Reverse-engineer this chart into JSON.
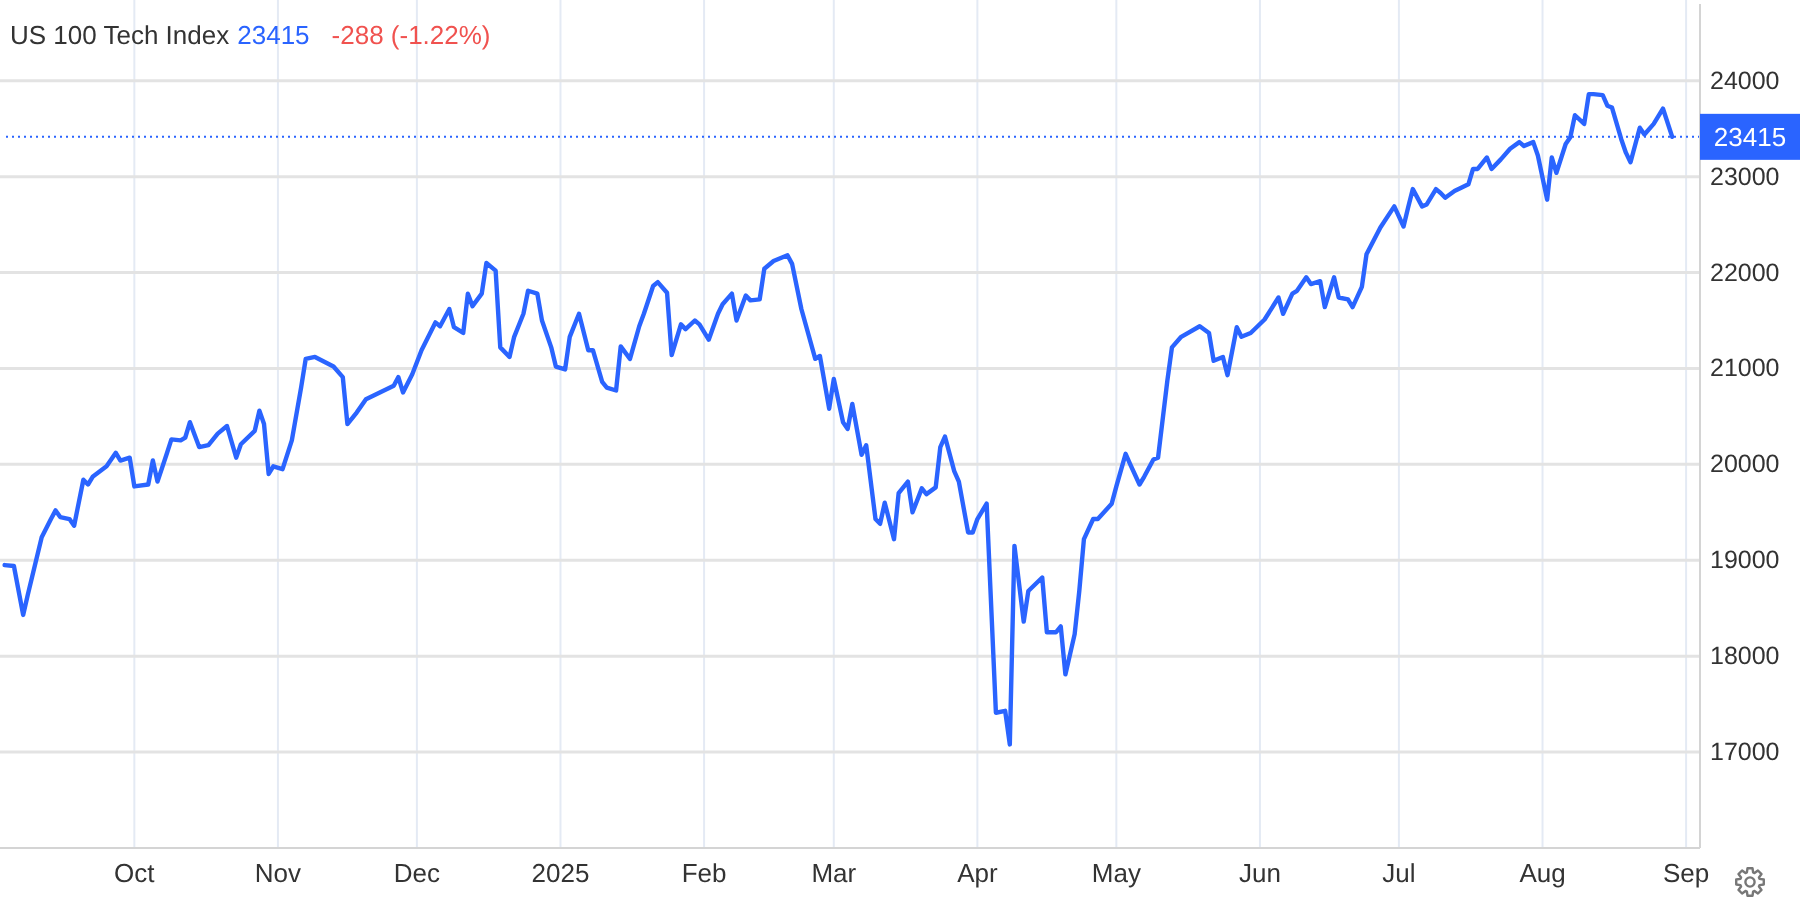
{
  "chart_data": {
    "type": "line",
    "title": "US 100 Tech Index",
    "annotations": [
      "23415",
      "-288 (-1.22%)"
    ],
    "x": [
      "2024-09-03",
      "2024-09-05",
      "2024-09-07",
      "2024-09-08",
      "2024-09-11",
      "2024-09-13",
      "2024-09-14",
      "2024-09-15",
      "2024-09-17",
      "2024-09-18",
      "2024-09-20",
      "2024-09-21",
      "2024-09-22",
      "2024-09-25",
      "2024-09-27",
      "2024-09-28",
      "2024-09-30",
      "2024-10-01",
      "2024-10-04",
      "2024-10-05",
      "2024-10-06",
      "2024-10-08",
      "2024-10-09",
      "2024-10-11",
      "2024-10-12",
      "2024-10-13",
      "2024-10-15",
      "2024-10-17",
      "2024-10-19",
      "2024-10-21",
      "2024-10-23",
      "2024-10-24",
      "2024-10-27",
      "2024-10-28",
      "2024-10-29",
      "2024-10-30",
      "2024-10-31",
      "2024-11-02",
      "2024-11-04",
      "2024-11-06",
      "2024-11-07",
      "2024-11-09",
      "2024-11-13",
      "2024-11-15",
      "2024-11-16",
      "2024-11-18",
      "2024-11-20",
      "2024-11-23",
      "2024-11-26",
      "2024-11-27",
      "2024-11-28",
      "2024-11-30",
      "2024-12-02",
      "2024-12-05",
      "2024-12-06",
      "2024-12-08",
      "2024-12-09",
      "2024-12-11",
      "2024-12-12",
      "2024-12-13",
      "2024-12-15",
      "2024-12-16",
      "2024-12-18",
      "2024-12-19",
      "2024-12-21",
      "2024-12-22",
      "2024-12-24",
      "2024-12-25",
      "2024-12-27",
      "2024-12-28",
      "2024-12-30",
      "2024-12-31",
      "2025-01-02",
      "2025-01-03",
      "2025-01-05",
      "2025-01-07",
      "2025-01-08",
      "2025-01-10",
      "2025-01-11",
      "2025-01-13",
      "2025-01-14",
      "2025-01-16",
      "2025-01-18",
      "2025-01-19",
      "2025-01-21",
      "2025-01-22",
      "2025-01-24",
      "2025-01-25",
      "2025-01-27",
      "2025-01-28",
      "2025-01-30",
      "2025-01-31",
      "2025-02-02",
      "2025-02-04",
      "2025-02-05",
      "2025-02-07",
      "2025-02-08",
      "2025-02-10",
      "2025-02-11",
      "2025-02-13",
      "2025-02-14",
      "2025-02-16",
      "2025-02-19",
      "2025-02-20",
      "2025-02-22",
      "2025-02-25",
      "2025-02-26",
      "2025-02-28",
      "2025-03-01",
      "2025-03-03",
      "2025-03-04",
      "2025-03-05",
      "2025-03-07",
      "2025-03-08",
      "2025-03-10",
      "2025-03-11",
      "2025-03-12",
      "2025-03-14",
      "2025-03-15",
      "2025-03-17",
      "2025-03-18",
      "2025-03-20",
      "2025-03-21",
      "2025-03-23",
      "2025-03-24",
      "2025-03-25",
      "2025-03-27",
      "2025-03-28",
      "2025-03-30",
      "2025-03-31",
      "2025-04-01",
      "2025-04-03",
      "2025-04-05",
      "2025-04-07",
      "2025-04-08",
      "2025-04-09",
      "2025-04-11",
      "2025-04-12",
      "2025-04-15",
      "2025-04-16",
      "2025-04-18",
      "2025-04-19",
      "2025-04-20",
      "2025-04-22",
      "2025-04-23",
      "2025-04-24",
      "2025-04-26",
      "2025-04-27",
      "2025-04-30",
      "2025-05-01",
      "2025-05-03",
      "2025-05-04",
      "2025-05-06",
      "2025-05-07",
      "2025-05-09",
      "2025-05-10",
      "2025-05-12",
      "2025-05-13",
      "2025-05-15",
      "2025-05-19",
      "2025-05-21",
      "2025-05-22",
      "2025-05-24",
      "2025-05-25",
      "2025-05-27",
      "2025-05-28",
      "2025-05-30",
      "2025-06-02",
      "2025-06-05",
      "2025-06-06",
      "2025-06-08",
      "2025-06-09",
      "2025-06-11",
      "2025-06-12",
      "2025-06-14",
      "2025-06-15",
      "2025-06-17",
      "2025-06-18",
      "2025-06-20",
      "2025-06-21",
      "2025-06-23",
      "2025-06-24",
      "2025-06-27",
      "2025-06-30",
      "2025-07-02",
      "2025-07-03",
      "2025-07-04",
      "2025-07-06",
      "2025-07-07",
      "2025-07-09",
      "2025-07-10",
      "2025-07-11",
      "2025-07-13",
      "2025-07-16",
      "2025-07-17",
      "2025-07-18",
      "2025-07-20",
      "2025-07-21",
      "2025-07-23",
      "2025-07-25",
      "2025-07-27",
      "2025-07-28",
      "2025-07-30",
      "2025-07-31",
      "2025-08-02",
      "2025-08-03",
      "2025-08-04",
      "2025-08-06",
      "2025-08-07",
      "2025-08-08",
      "2025-08-10",
      "2025-08-11",
      "2025-08-12",
      "2025-08-14",
      "2025-08-15",
      "2025-08-16",
      "2025-08-18",
      "2025-08-19",
      "2025-08-20",
      "2025-08-22",
      "2025-08-23",
      "2025-08-25",
      "2025-08-27",
      "2025-08-29"
    ],
    "values": [
      18950,
      18940,
      18430,
      18640,
      19240,
      19430,
      19520,
      19450,
      19430,
      19360,
      19840,
      19790,
      19870,
      19980,
      20120,
      20040,
      20070,
      19770,
      19790,
      20040,
      19820,
      20110,
      20260,
      20250,
      20280,
      20440,
      20180,
      20200,
      20320,
      20400,
      20070,
      20210,
      20350,
      20560,
      20420,
      19900,
      19980,
      19950,
      20250,
      20800,
      21100,
      21120,
      21020,
      20910,
      20420,
      20540,
      20680,
      20750,
      20820,
      20910,
      20750,
      20940,
      21190,
      21480,
      21440,
      21620,
      21430,
      21370,
      21780,
      21650,
      21780,
      22100,
      22020,
      21220,
      21120,
      21330,
      21570,
      21810,
      21780,
      21500,
      21220,
      21020,
      20990,
      21330,
      21570,
      21190,
      21190,
      20860,
      20800,
      20770,
      21230,
      21100,
      21440,
      21570,
      21860,
      21900,
      21790,
      21140,
      21460,
      21410,
      21500,
      21460,
      21300,
      21570,
      21670,
      21780,
      21500,
      21760,
      21710,
      21720,
      22040,
      22120,
      22180,
      22090,
      21620,
      21100,
      21130,
      20580,
      20890,
      20440,
      20370,
      20630,
      20100,
      20200,
      19430,
      19380,
      19600,
      19220,
      19700,
      19820,
      19500,
      19750,
      19690,
      19760,
      20180,
      20290,
      19930,
      19820,
      19290,
      19290,
      19430,
      19590,
      17410,
      17430,
      17080,
      19150,
      18360,
      18680,
      18820,
      18250,
      18250,
      18310,
      17810,
      18230,
      18680,
      19220,
      19430,
      19430,
      19590,
      19770,
      20110,
      20000,
      19790,
      19870,
      20050,
      20070,
      20870,
      21220,
      21330,
      21440,
      21370,
      21080,
      21120,
      20930,
      21430,
      21330,
      21370,
      21510,
      21740,
      21570,
      21780,
      21810,
      21950,
      21880,
      21910,
      21640,
      21950,
      21740,
      21720,
      21640,
      21850,
      22190,
      22470,
      22690,
      22480,
      22680,
      22870,
      22690,
      22710,
      22870,
      22830,
      22780,
      22850,
      22920,
      23080,
      23080,
      23200,
      23080,
      23180,
      23290,
      23360,
      23320,
      23360,
      23220,
      22760,
      23200,
      23040,
      23340,
      23410,
      23640,
      23550,
      23860,
      23860,
      23850,
      23740,
      23720,
      23390,
      23250,
      23150,
      23510,
      23440,
      23550,
      23710,
      23415
    ],
    "color": "#2a64ff",
    "xlim": [
      "2024-09-02",
      "2025-09-04"
    ],
    "xticks": [
      {
        "value": "2024-10-01",
        "label": "Oct"
      },
      {
        "value": "2024-11-01",
        "label": "Nov"
      },
      {
        "value": "2024-12-01",
        "label": "Dec"
      },
      {
        "value": "2025-01-01",
        "label": "2025"
      },
      {
        "value": "2025-02-01",
        "label": "Feb"
      },
      {
        "value": "2025-03-01",
        "label": "Mar"
      },
      {
        "value": "2025-04-01",
        "label": "Apr"
      },
      {
        "value": "2025-05-01",
        "label": "May"
      },
      {
        "value": "2025-06-01",
        "label": "Jun"
      },
      {
        "value": "2025-07-01",
        "label": "Jul"
      },
      {
        "value": "2025-08-01",
        "label": "Aug"
      },
      {
        "value": "2025-09-01",
        "label": "Sep"
      }
    ],
    "ylim": [
      16000,
      24800
    ],
    "yticks": [
      17000,
      18000,
      19000,
      20000,
      21000,
      22000,
      23000,
      24000
    ],
    "grid": true,
    "ref_lines": [
      {
        "axis": "y",
        "value": 23415,
        "label": "23415",
        "color": "#2a64ff",
        "line_style": "dotted"
      }
    ]
  }
}
